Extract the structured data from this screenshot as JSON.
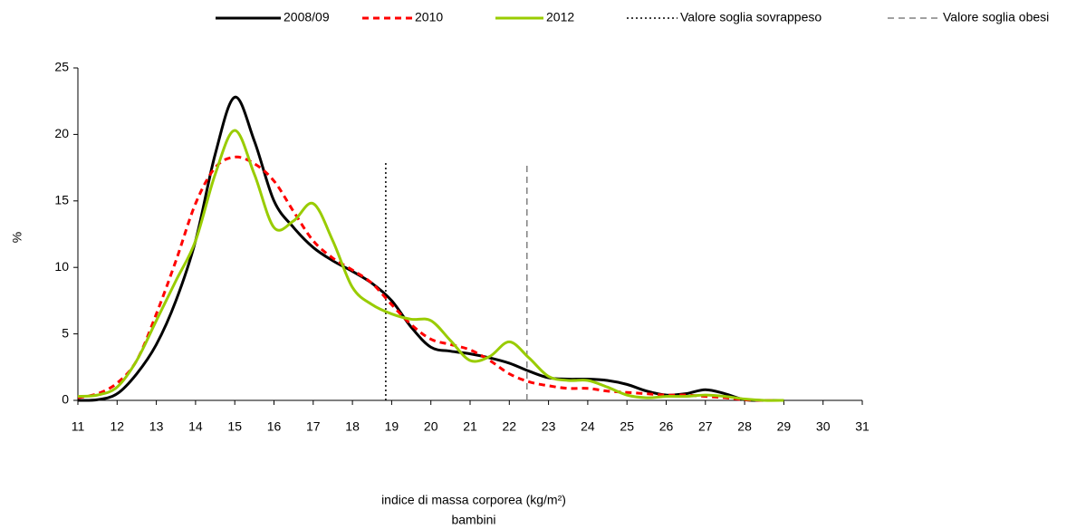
{
  "chart_data": {
    "type": "line",
    "x": [
      11,
      11.5,
      12,
      12.5,
      13,
      13.5,
      14,
      14.5,
      15,
      15.5,
      16,
      16.5,
      17,
      17.5,
      18,
      18.5,
      19,
      19.5,
      20,
      20.5,
      21,
      21.5,
      22,
      22.5,
      23,
      23.5,
      24,
      24.5,
      25,
      25.5,
      26,
      26.5,
      27,
      27.5,
      28,
      28.5,
      29
    ],
    "series": [
      {
        "name": "2008/09",
        "color": "#000000",
        "dash": "solid",
        "values": [
          0,
          0.05,
          0.5,
          2,
          4.2,
          7.5,
          12,
          18.5,
          22.8,
          19.5,
          15,
          13,
          11.5,
          10.5,
          9.7,
          8.8,
          7.5,
          5.5,
          4,
          3.7,
          3.5,
          3.2,
          2.8,
          2.2,
          1.7,
          1.6,
          1.6,
          1.5,
          1.2,
          0.7,
          0.4,
          0.5,
          0.8,
          0.5,
          0.05,
          0,
          0
        ]
      },
      {
        "name": "2010",
        "color": "#ff0000",
        "dash": "dashed",
        "values": [
          0.2,
          0.5,
          1.3,
          3,
          6.5,
          10.5,
          14.8,
          17.5,
          18.3,
          17.8,
          16.5,
          14.2,
          12,
          10.7,
          9.8,
          8.8,
          7.2,
          5.7,
          4.6,
          4.2,
          3.8,
          3,
          2,
          1.4,
          1.1,
          0.9,
          0.9,
          0.7,
          0.6,
          0.5,
          0.4,
          0.4,
          0.3,
          0.2,
          0.05,
          0,
          0
        ]
      },
      {
        "name": "2012",
        "color": "#99cc00",
        "dash": "solid",
        "values": [
          0.3,
          0.4,
          1,
          3,
          6,
          9,
          12,
          17,
          20.3,
          17,
          13,
          13.5,
          14.8,
          12,
          8.5,
          7.2,
          6.5,
          6.1,
          6,
          4.5,
          3,
          3.3,
          4.4,
          3.2,
          1.8,
          1.5,
          1.5,
          1,
          0.4,
          0.2,
          0.3,
          0.3,
          0.4,
          0.3,
          0.1,
          0,
          0
        ]
      }
    ],
    "reference_lines": [
      {
        "name": "Valore soglia sovrappeso",
        "x": 18.85,
        "ymax": 18,
        "color": "#000000",
        "dash": "dotted"
      },
      {
        "name": "Valore soglia obesi",
        "x": 22.45,
        "ymax": 17.7,
        "color": "#808080",
        "dash": "dashed"
      }
    ],
    "xlabel": "indice di massa corporea (kg/m²)",
    "xlabel2": "bambini",
    "ylabel": "%",
    "xlim": [
      11,
      31
    ],
    "xticks": [
      11,
      12,
      13,
      14,
      15,
      16,
      17,
      18,
      19,
      20,
      21,
      22,
      23,
      24,
      25,
      26,
      27,
      28,
      29,
      30,
      31
    ],
    "ylim": [
      0,
      25
    ],
    "yticks": [
      0,
      5,
      10,
      15,
      20,
      25
    ],
    "grid": false,
    "legend": "top"
  }
}
